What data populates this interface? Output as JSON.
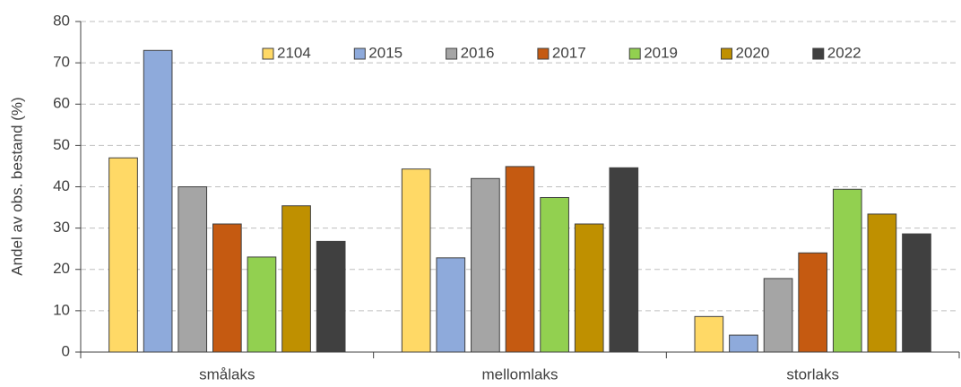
{
  "chart_data": {
    "type": "bar",
    "y_label": "Andel av obs. bestand (%)",
    "categories": [
      "smålaks",
      "mellomlaks",
      "storlaks"
    ],
    "series": [
      {
        "name": "2104",
        "color": "#ffd966",
        "values": [
          47,
          44.3,
          8.6
        ]
      },
      {
        "name": "2015",
        "color": "#8eaadb",
        "values": [
          73,
          22.8,
          4.1
        ]
      },
      {
        "name": "2016",
        "color": "#a5a5a5",
        "values": [
          40,
          42,
          17.8
        ]
      },
      {
        "name": "2017",
        "color": "#c55a11",
        "values": [
          31,
          44.9,
          24
        ]
      },
      {
        "name": "2019",
        "color": "#92d050",
        "values": [
          23,
          37.4,
          39.4
        ]
      },
      {
        "name": "2020",
        "color": "#bf9000",
        "values": [
          35.4,
          31,
          33.4
        ]
      },
      {
        "name": "2022",
        "color": "#404040",
        "values": [
          26.8,
          44.6,
          28.6
        ]
      }
    ],
    "ylim": [
      0,
      80
    ],
    "yticks": [
      0,
      10,
      20,
      30,
      40,
      50,
      60,
      70,
      80
    ],
    "grid": true,
    "legend": "top"
  }
}
